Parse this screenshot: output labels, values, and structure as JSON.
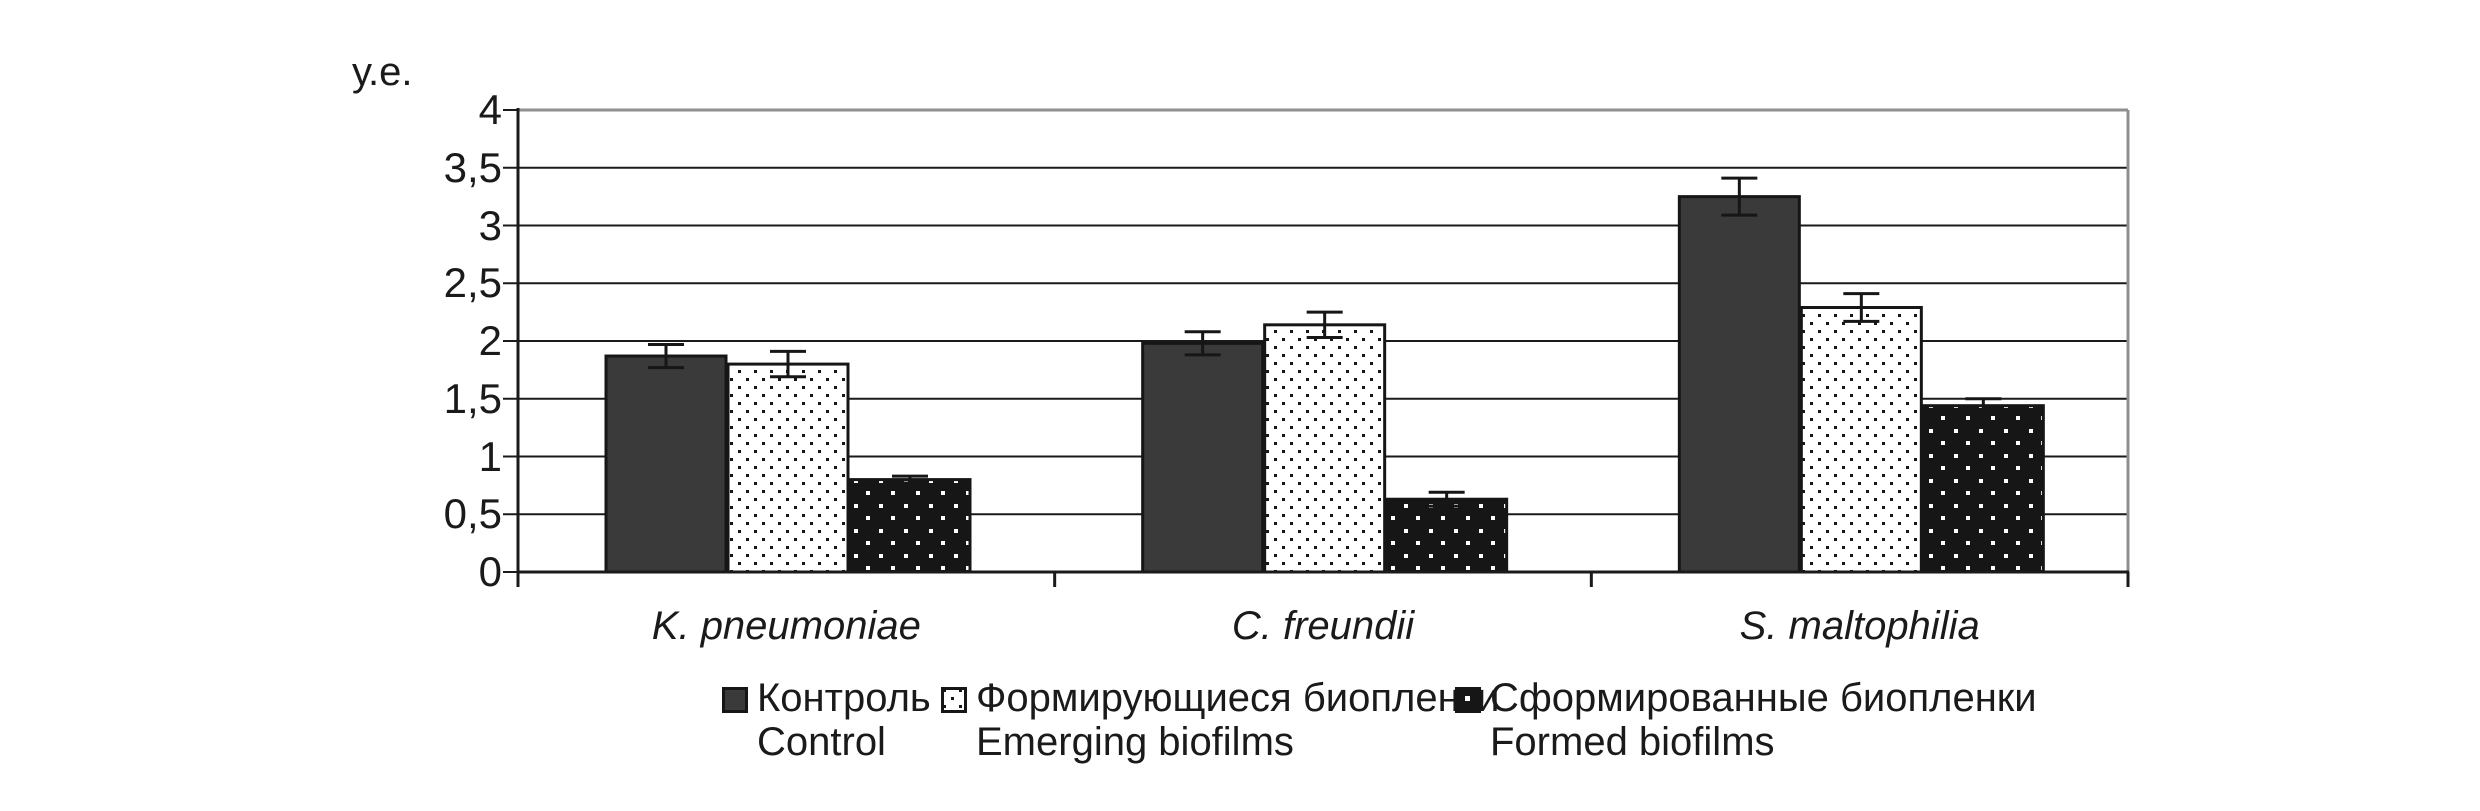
{
  "chart_data": {
    "type": "bar",
    "title": "",
    "ylabel": "у.е.",
    "xlabel": "",
    "categories": [
      "K. pneumoniae",
      "C. freundii",
      "S. maltophilia"
    ],
    "series": [
      {
        "name_ru": "Контроль",
        "name_en": "Control",
        "style": "solid-dark",
        "values": [
          1.87,
          1.98,
          3.25
        ],
        "errors": [
          0.1,
          0.1,
          0.16
        ]
      },
      {
        "name_ru": "Формирующиеся биопленки",
        "name_en": "Emerging biofilms",
        "style": "white-dotted",
        "values": [
          1.8,
          2.14,
          2.29
        ],
        "errors": [
          0.11,
          0.11,
          0.12
        ]
      },
      {
        "name_ru": "Сформированные биопленки",
        "name_en": "Formed biofilms",
        "style": "black-dotted",
        "values": [
          0.8,
          0.63,
          1.44
        ],
        "errors": [
          0.03,
          0.06,
          0.06
        ]
      }
    ],
    "ylim": [
      0,
      4
    ],
    "ytick_step": 0.5,
    "ytick_labels": [
      "0",
      "0,5",
      "1",
      "1,5",
      "2",
      "2,5",
      "3",
      "3,5",
      "4"
    ],
    "grid": "horizontal",
    "error_bars": true,
    "legend_position": "bottom"
  },
  "colors": {
    "bar_dark": "#3a3a3a",
    "ink": "#161616",
    "grid_line": "#1a1a1a",
    "frame_gray": "#8f8f8f",
    "background": "#ffffff"
  }
}
